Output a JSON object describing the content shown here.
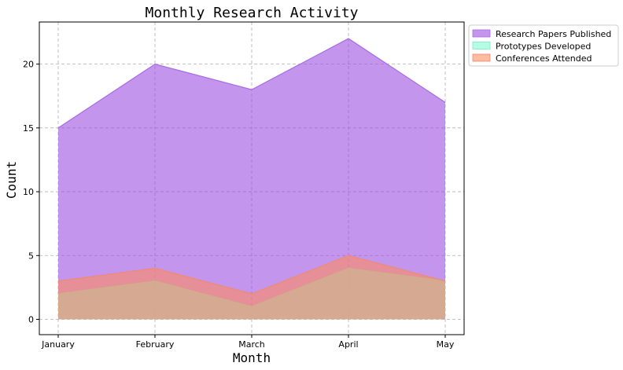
{
  "chart_data": {
    "type": "area",
    "title": "Monthly Research Activity",
    "xlabel": "Month",
    "ylabel": "Count",
    "categories": [
      "January",
      "February",
      "March",
      "April",
      "May"
    ],
    "ylim": [
      -1.2,
      23.3
    ],
    "yticks": [
      0,
      5,
      10,
      15,
      20
    ],
    "grid": true,
    "legend_position": "outside-top-right",
    "series": [
      {
        "name": "Research Papers Published",
        "values": [
          15,
          20,
          18,
          22,
          17
        ],
        "color": "#9b4fe0",
        "line_color": "#a76be4"
      },
      {
        "name": "Prototypes Developed",
        "values": [
          2,
          3,
          1,
          4,
          3
        ],
        "color": "#7fffd4",
        "line_color": "#7fe6c4"
      },
      {
        "name": "Conferences Attended",
        "values": [
          3,
          4,
          2,
          5,
          3
        ],
        "color": "#ff8c60",
        "line_color": "#f08a70"
      }
    ]
  }
}
